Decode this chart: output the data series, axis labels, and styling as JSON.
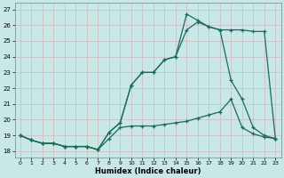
{
  "xlabel": "Humidex (Indice chaleur)",
  "ylabel": "",
  "xlim": [
    -0.5,
    23.5
  ],
  "ylim": [
    17.6,
    27.4
  ],
  "yticks": [
    18,
    19,
    20,
    21,
    22,
    23,
    24,
    25,
    26,
    27
  ],
  "xticks": [
    0,
    1,
    2,
    3,
    4,
    5,
    6,
    7,
    8,
    9,
    10,
    11,
    12,
    13,
    14,
    15,
    16,
    17,
    18,
    19,
    20,
    21,
    22,
    23
  ],
  "bg_color": "#c8e8e8",
  "grid_color": "#d0b8b8",
  "line_color": "#1a6b5a",
  "line1_x": [
    0,
    1,
    2,
    3,
    4,
    5,
    6,
    7,
    8,
    9,
    10,
    11,
    12,
    13,
    14,
    15,
    16,
    17,
    18,
    19,
    20,
    21,
    22,
    23
  ],
  "line1_y": [
    19.0,
    18.7,
    18.5,
    18.5,
    18.3,
    18.3,
    18.3,
    18.1,
    18.8,
    19.5,
    19.6,
    19.6,
    19.6,
    19.7,
    19.8,
    19.9,
    20.1,
    20.3,
    20.5,
    21.3,
    19.5,
    19.1,
    18.9,
    18.8
  ],
  "line2_x": [
    0,
    1,
    2,
    3,
    4,
    5,
    6,
    7,
    8,
    9,
    10,
    11,
    12,
    13,
    14,
    15,
    16,
    17,
    18,
    19,
    20,
    21,
    22,
    23
  ],
  "line2_y": [
    19.0,
    18.7,
    18.5,
    18.5,
    18.3,
    18.3,
    18.3,
    18.1,
    19.2,
    19.8,
    22.2,
    23.0,
    23.0,
    23.8,
    24.0,
    25.7,
    26.2,
    25.9,
    25.7,
    25.7,
    25.7,
    25.6,
    25.6,
    18.8
  ],
  "line3_x": [
    0,
    1,
    2,
    3,
    4,
    5,
    6,
    7,
    8,
    9,
    10,
    11,
    12,
    13,
    14,
    15,
    16,
    17,
    18,
    19,
    20,
    21,
    22,
    23
  ],
  "line3_y": [
    19.0,
    18.7,
    18.5,
    18.5,
    18.3,
    18.3,
    18.3,
    18.1,
    19.2,
    19.8,
    22.2,
    23.0,
    23.0,
    23.8,
    24.0,
    26.7,
    26.3,
    25.9,
    25.7,
    22.5,
    21.3,
    19.5,
    19.0,
    18.8
  ]
}
